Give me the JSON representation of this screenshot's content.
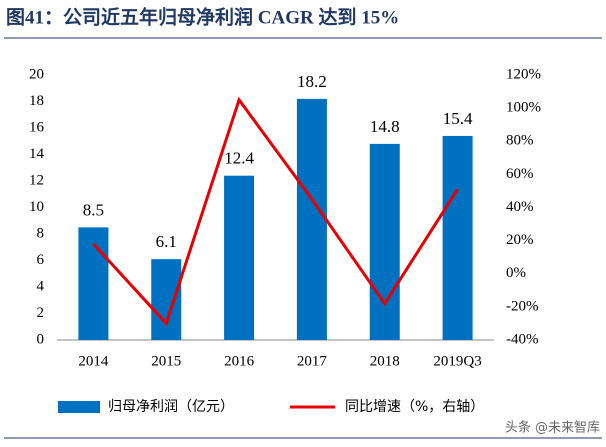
{
  "chart_data": {
    "type": "bar",
    "title": "图41：公司近五年归母净利润 CAGR 达到 15%",
    "categories": [
      "2014",
      "2015",
      "2016",
      "2017",
      "2018",
      "2019Q3"
    ],
    "series": [
      {
        "name": "归母净利润（亿元）",
        "color": "#0070c0",
        "type": "bar",
        "axis": "y",
        "values": [
          8.5,
          6.1,
          12.4,
          18.2,
          14.8,
          15.4
        ]
      },
      {
        "name": "同比增速（%，右轴）",
        "color": "#e60000",
        "type": "line",
        "axis": "y2",
        "values": [
          18,
          -30,
          105,
          45,
          -18,
          51
        ]
      }
    ],
    "ylim": [
      0,
      20
    ],
    "yticks": [
      0,
      2,
      4,
      6,
      8,
      10,
      12,
      14,
      16,
      18,
      20
    ],
    "y2lim": [
      -40,
      120
    ],
    "y2ticks": [
      {
        "value": -40,
        "label": "-40%"
      },
      {
        "value": -20,
        "label": "-20%"
      },
      {
        "value": 0,
        "label": "0%"
      },
      {
        "value": 20,
        "label": "20%"
      },
      {
        "value": 40,
        "label": "40%"
      },
      {
        "value": 60,
        "label": "60%"
      },
      {
        "value": 80,
        "label": "80%"
      },
      {
        "value": 100,
        "label": "100%"
      },
      {
        "value": 120,
        "label": "120%"
      }
    ],
    "watermark": "头条 @未来智库"
  }
}
